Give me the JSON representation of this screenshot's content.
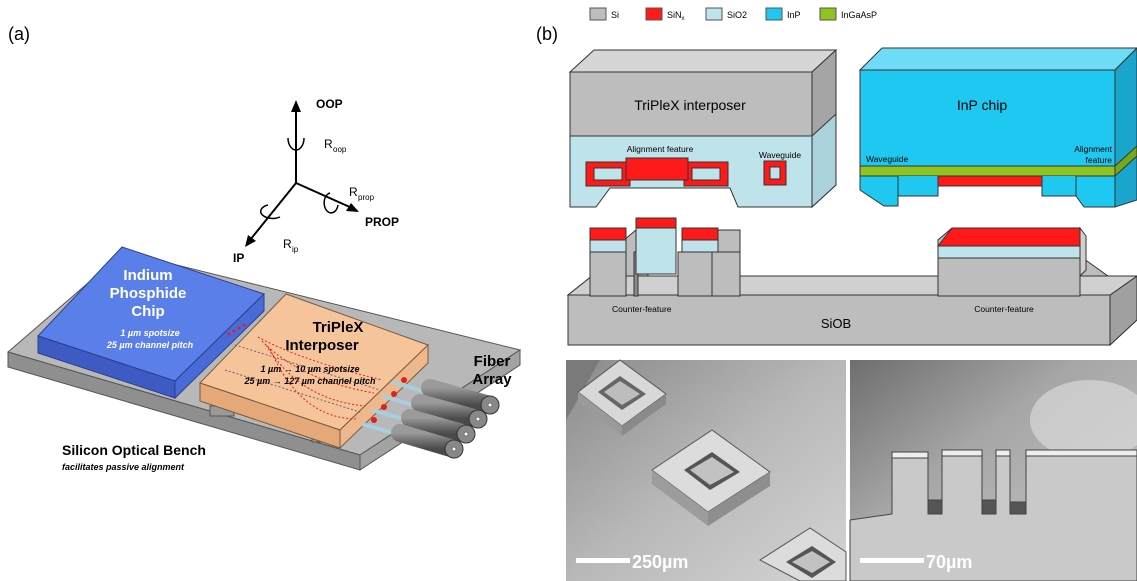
{
  "panel_a": {
    "label": "(a)",
    "axes": {
      "oop": "OOP",
      "r_oop_main": "R",
      "r_oop_sub": "oop",
      "r_prop_main": "R",
      "r_prop_sub": "prop",
      "prop": "PROP",
      "ip": "IP",
      "r_ip_main": "R",
      "r_ip_sub": "ip"
    },
    "inp_chip": {
      "line1": "Indium",
      "line2": "Phosphide",
      "line3": "Chip",
      "spec1": "1 µm spotsize",
      "spec2": "25 µm channel pitch"
    },
    "interposer": {
      "line1": "TriPleX",
      "line2": "Interposer",
      "spec1": "1 µm → 10 µm spotsize",
      "spec2": "25 µm → 127 µm channel pitch"
    },
    "fiber": {
      "line1": "Fiber",
      "line2": "Array"
    },
    "bench": {
      "title": "Silicon Optical Bench",
      "subtitle": "facilitates passive alignment"
    },
    "colors": {
      "inp": "#5b7fe8",
      "interposer": "#f6c49a",
      "bench": "#b8b8b8",
      "fiber": "#7a7a7a"
    }
  },
  "panel_b": {
    "label": "(b)",
    "legend": [
      {
        "key": "si",
        "label": "Si",
        "sub": "",
        "color": "#bdbdbd"
      },
      {
        "key": "sin",
        "label": "SiN",
        "sub": "x",
        "color": "#ff1a1a"
      },
      {
        "key": "sio2",
        "label": "SiO2",
        "sub": "",
        "color": "#bfe3ea"
      },
      {
        "key": "inp",
        "label": "InP",
        "sub": "",
        "color": "#1ec8f0"
      },
      {
        "key": "ingaasp",
        "label": "InGaAsP",
        "sub": "",
        "color": "#8fc31f"
      }
    ],
    "interposer_title": "TriPleX interposer",
    "alignment_feature": "Alignment feature",
    "waveguide_left": "Waveguide",
    "inp_title": "InP chip",
    "waveguide_inp": "Waveguide",
    "alignment_inp_1": "Alignment",
    "alignment_inp_2": "feature",
    "counter_feature_left": "Counter-feature",
    "siob": "SiOB",
    "counter_feature_right": "Counter-feature",
    "scale_left": "250µm",
    "scale_right": "70µm"
  }
}
